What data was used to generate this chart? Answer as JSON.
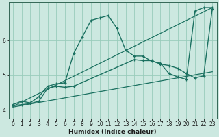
{
  "xlabel": "Humidex (Indice chaleur)",
  "background_color": "#cce8e0",
  "grid_color": "#99ccbb",
  "line_color": "#1a7060",
  "xlim": [
    -0.5,
    23.5
  ],
  "ylim": [
    3.75,
    7.1
  ],
  "yticks": [
    4,
    5,
    6
  ],
  "xticks": [
    0,
    1,
    2,
    3,
    4,
    5,
    6,
    7,
    8,
    9,
    10,
    11,
    12,
    13,
    14,
    15,
    16,
    17,
    18,
    19,
    20,
    21,
    22,
    23
  ],
  "series": [
    {
      "x": [
        0,
        1,
        2,
        3,
        4,
        5,
        6,
        7,
        8,
        9,
        10,
        11,
        12,
        13,
        14,
        15,
        16,
        17,
        18,
        19,
        20,
        21,
        22,
        23
      ],
      "y": [
        4.15,
        4.25,
        4.2,
        4.38,
        4.68,
        4.75,
        4.78,
        5.62,
        6.1,
        6.58,
        6.65,
        6.72,
        6.35,
        5.72,
        5.55,
        5.55,
        5.4,
        5.35,
        5.05,
        4.95,
        4.88,
        6.85,
        6.95,
        6.95
      ],
      "marker": true,
      "lw": 1.0
    },
    {
      "x": [
        0,
        1,
        2,
        3,
        4,
        5,
        6,
        7,
        14,
        15,
        16,
        17,
        18,
        19,
        20,
        21,
        22,
        23
      ],
      "y": [
        4.12,
        4.15,
        4.18,
        4.25,
        4.62,
        4.68,
        4.65,
        4.68,
        5.45,
        5.42,
        5.42,
        5.32,
        5.28,
        5.2,
        5.05,
        4.92,
        4.98,
        6.92
      ],
      "marker": true,
      "lw": 1.0
    },
    {
      "x": [
        0,
        23
      ],
      "y": [
        4.1,
        6.95
      ],
      "marker": false,
      "lw": 0.9
    },
    {
      "x": [
        0,
        23
      ],
      "y": [
        4.08,
        5.1
      ],
      "marker": false,
      "lw": 0.9
    }
  ]
}
